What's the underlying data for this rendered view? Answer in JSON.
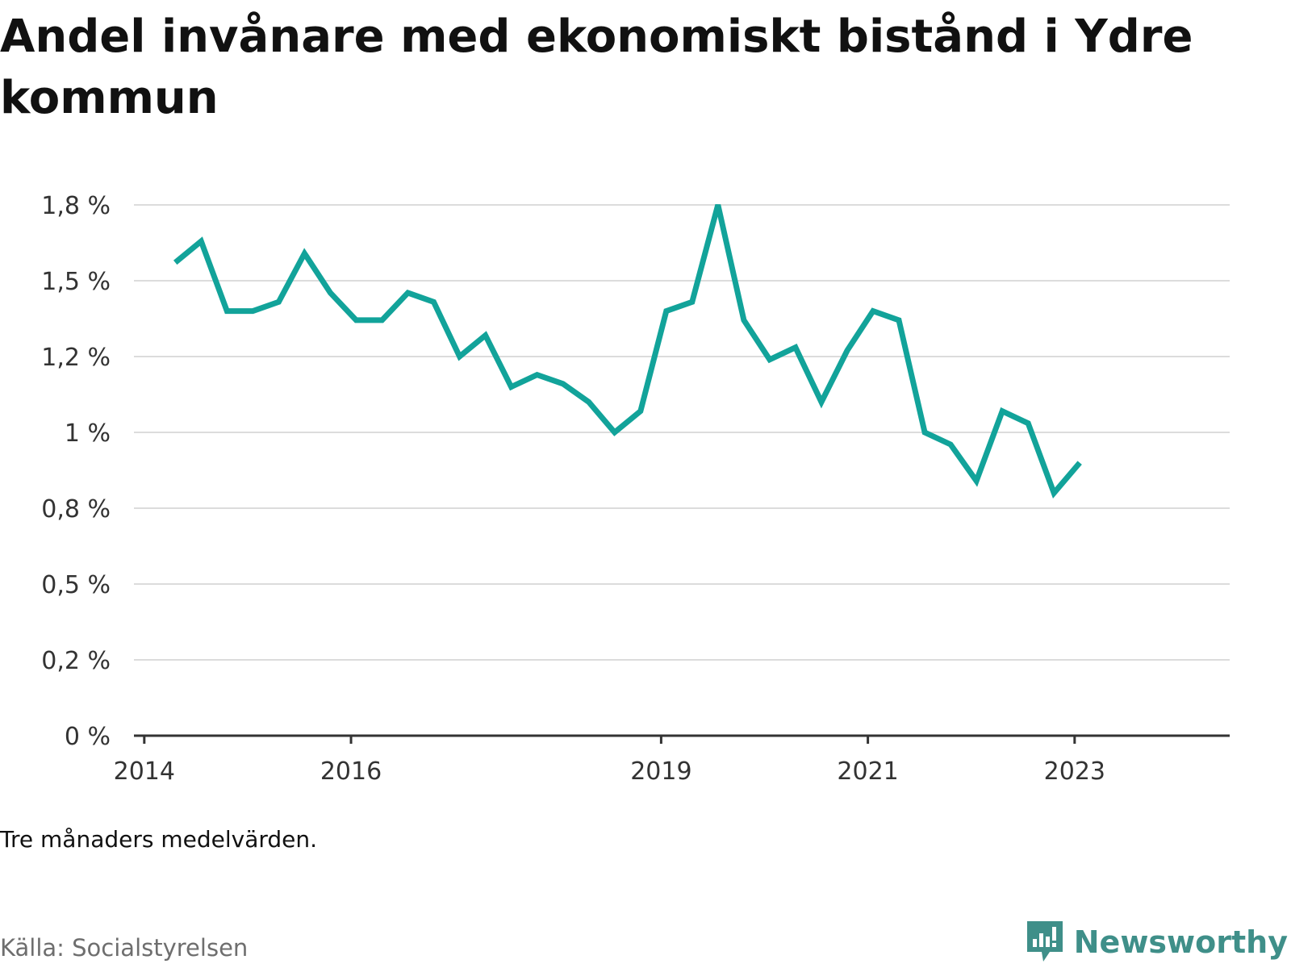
{
  "title": "Andel invånare med ekonomiskt bistånd i Ydre kommun",
  "note": "Tre månaders medelvärden.",
  "source": "Källa: Socialstyrelsen",
  "brand": {
    "name": "Newsworthy",
    "icon": "newsworthy-logo-icon",
    "color": "#3f8f89"
  },
  "chart_data": {
    "type": "line",
    "line_color": "#12a39a",
    "grid": true,
    "y_ticks": [
      {
        "value": 0,
        "label": "0 %"
      },
      {
        "value": 0.25,
        "label": "0,2 %"
      },
      {
        "value": 0.5,
        "label": "0,5 %"
      },
      {
        "value": 0.75,
        "label": "0,8 %"
      },
      {
        "value": 1.0,
        "label": "1 %"
      },
      {
        "value": 1.25,
        "label": "1,2 %"
      },
      {
        "value": 1.5,
        "label": "1,5 %"
      },
      {
        "value": 1.75,
        "label": "1,8 %"
      }
    ],
    "x_ticks": [
      {
        "value": 2014.0,
        "label": "2014"
      },
      {
        "value": 2016.0,
        "label": "2016"
      },
      {
        "value": 2019.0,
        "label": "2019"
      },
      {
        "value": 2021.0,
        "label": "2021"
      },
      {
        "value": 2023.0,
        "label": "2023"
      }
    ],
    "xlim": [
      2013.9,
      2024.5
    ],
    "ylim": [
      0,
      1.75
    ],
    "series": [
      {
        "x": [
          2014.3,
          2014.55,
          2014.8,
          2015.05,
          2015.3,
          2015.55,
          2015.8,
          2016.05,
          2016.3,
          2016.55,
          2016.8,
          2017.05,
          2017.3,
          2017.55,
          2017.8,
          2018.05,
          2018.3,
          2018.55,
          2018.8,
          2019.05,
          2019.3,
          2019.55,
          2019.8,
          2020.05,
          2020.3,
          2020.55,
          2020.8,
          2021.05,
          2021.3,
          2021.55,
          2021.8,
          2022.05,
          2022.3,
          2022.55,
          2022.8,
          2023.05
        ],
        "values": [
          1.56,
          1.63,
          1.4,
          1.4,
          1.43,
          1.59,
          1.46,
          1.37,
          1.37,
          1.46,
          1.43,
          1.25,
          1.32,
          1.15,
          1.19,
          1.16,
          1.1,
          1.0,
          1.07,
          1.4,
          1.43,
          1.75,
          1.37,
          1.24,
          1.28,
          1.1,
          1.27,
          1.4,
          1.37,
          1.0,
          0.96,
          0.84,
          1.07,
          1.03,
          0.8,
          0.9
        ]
      }
    ]
  }
}
